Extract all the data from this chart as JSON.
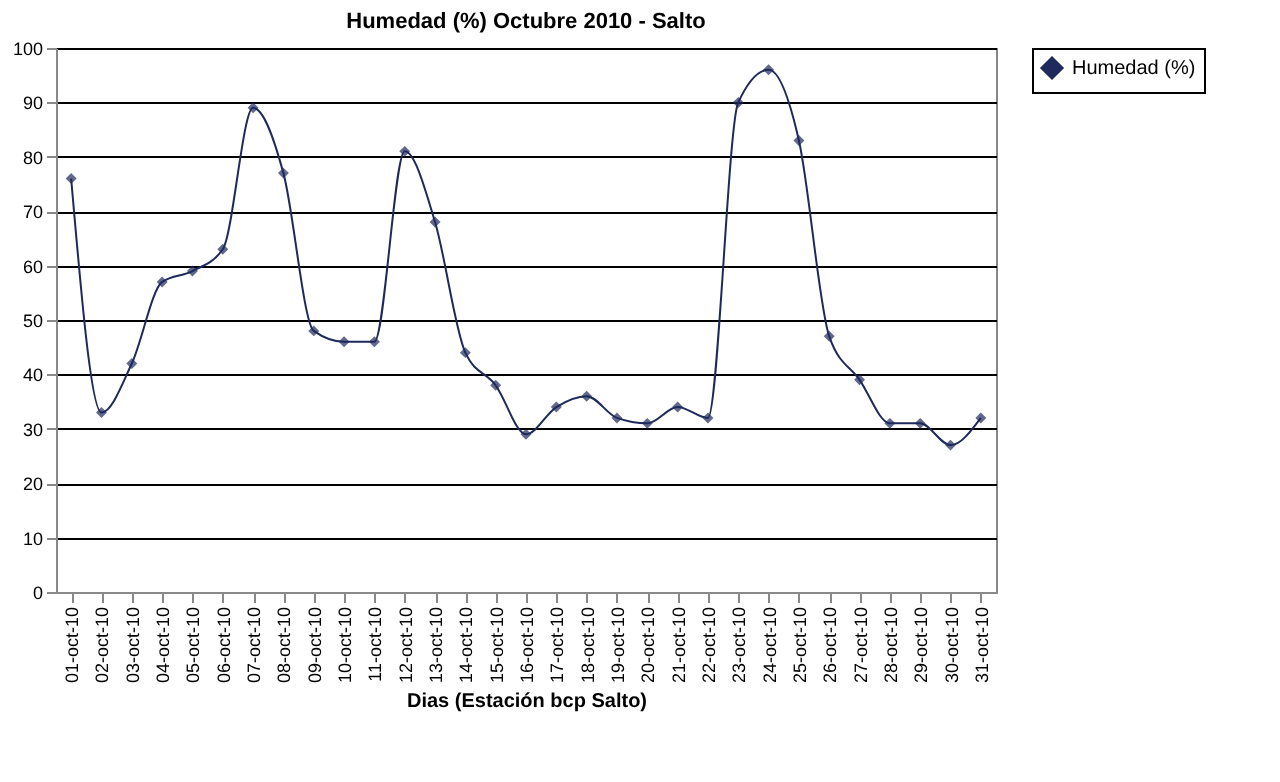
{
  "chart_data": {
    "type": "line",
    "title": "Humedad (%) Octubre 2010 - Salto",
    "xlabel": "Dias (Estación bcp Salto)",
    "categories": [
      "01-oct-10",
      "02-oct-10",
      "03-oct-10",
      "04-oct-10",
      "05-oct-10",
      "06-oct-10",
      "07-oct-10",
      "08-oct-10",
      "09-oct-10",
      "10-oct-10",
      "11-oct-10",
      "12-oct-10",
      "13-oct-10",
      "14-oct-10",
      "15-oct-10",
      "16-oct-10",
      "17-oct-10",
      "18-oct-10",
      "19-oct-10",
      "20-oct-10",
      "21-oct-10",
      "22-oct-10",
      "23-oct-10",
      "24-oct-10",
      "25-oct-10",
      "26-oct-10",
      "27-oct-10",
      "28-oct-10",
      "29-oct-10",
      "30-oct-10",
      "31-oct-10"
    ],
    "series": [
      {
        "name": "Humedad (%)",
        "color": "#1f2a5c",
        "values": [
          76,
          33,
          42,
          57,
          59,
          63,
          89,
          77,
          48,
          46,
          46,
          81,
          68,
          44,
          38,
          29,
          34,
          36,
          32,
          31,
          34,
          32,
          90,
          96,
          83,
          47,
          39,
          31,
          31,
          27,
          32
        ]
      }
    ],
    "ylim": [
      0,
      100
    ],
    "yticks": [
      0,
      10,
      20,
      30,
      40,
      50,
      60,
      70,
      80,
      90,
      100
    ],
    "grid": "y",
    "legend": "right",
    "marker": "diamond",
    "line_style": "solid"
  }
}
